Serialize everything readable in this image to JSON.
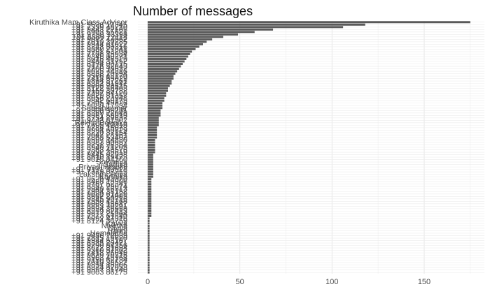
{
  "chart_data": {
    "type": "bar",
    "orientation": "horizontal",
    "title": "Number of messages",
    "xlabel": "",
    "ylabel": "",
    "xlim": [
      0,
      180
    ],
    "x_ticks": [
      0,
      50,
      100,
      150
    ],
    "grid": true,
    "legend": "none",
    "bar_color": "#595959",
    "categories": [
      "Kiruthika Mam Class Advisor",
      "+91 9626 12345",
      "+91 7339 48210",
      "+91 9443 27105",
      "+91 8903 55621",
      "+91 9750 13398",
      "+91 6380 72114",
      "+91 9087 44562",
      "+91 7010 39285",
      "+91 9944 61027",
      "+91 8248 50316",
      "+91 9360 27841",
      "+91 9791 63208",
      "+91 7708 15934",
      "+91 9345 80271",
      "+91 8015 46329",
      "+91 9488 31752",
      "+91 6374 90215",
      "+91 9176 52843",
      "+91 7200 18637",
      "+91 9025 74316",
      "+91 8838 20594",
      "+91 9566 43170",
      "+91 7418 65029",
      "+91 9894 37261",
      "+91 6382 51947",
      "+91 9003 28615",
      "+91 8122 76403",
      "+91 9159 30782",
      "+91 7397 54120",
      "+91 9629 81357",
      "+91 8056 23948",
      "+91 9842 60175",
      "+91 7305 49826",
      "+91 9080 17534",
      "Sureshkumar",
      "+91 9500 36281",
      "+91 6369 72048",
      "+91 9361 58013",
      "+91 8754 29637",
      "+91 9443 81502",
      "Rekha Deepika",
      "+91 7695 42318",
      "+91 9786 15073",
      "+91 9994 60829",
      "+91 8220 37154",
      "+91 9047 28961",
      "+91 7868 53402",
      "+91 9597 14830",
      "+91 6383 90657",
      "+91 9751 26384",
      "+91 8940 71205",
      "+91 9363 48576",
      "+91 7092 35619",
      "+91 9445 62038",
      "+91 8610 19473",
      "+91 9025 84160",
      "Sowmiya",
      "Sathya",
      "Priyadharshini",
      "+91 9171 30528",
      "+91 7339 67215",
      "Lakshmi Priya",
      "Karthika",
      "+91 9626 43870",
      "+91 8428 15906",
      "+91 9787 52341",
      "+91 6381 29074",
      "+91 9940 76513",
      "+91 7904 38152",
      "+91 9080 61429",
      "+91 8667 24085",
      "+91 9345 90716",
      "+91 7550 43268",
      "+91 9003 15847",
      "+91 8883 70291",
      "+91 9524 36058",
      "+91 6379 82413",
      "+91 9677 25904",
      "+91 7373 61840",
      "+91 9092 47316",
      "+91 8124 30759",
      "Kavya",
      "Nivetha",
      "Divya",
      "Harini",
      "Hemalatha",
      "+91 9486 72035",
      "+91 7845 19620",
      "+91 9944 53187",
      "+91 6385 20471",
      "+91 9790 84356",
      "+91 8072 31694",
      "+91 9360 57802",
      "+91 7418 26049",
      "+91 9629 70315",
      "+91 8903 45168",
      "+91 9150 62734",
      "+91 7010 38527",
      "+91 9894 15906",
      "+91 6374 82053",
      "+91 9597 31740",
      "+91 9003 86275"
    ],
    "values": [
      175,
      118,
      106,
      68,
      58,
      49,
      41,
      35,
      32,
      30,
      28,
      26,
      24,
      23,
      22,
      21,
      20,
      19,
      18,
      17,
      16,
      15,
      14,
      14,
      13,
      13,
      12,
      11,
      11,
      10,
      10,
      9,
      9,
      8,
      8,
      8,
      7,
      7,
      7,
      6,
      6,
      6,
      6,
      5,
      5,
      5,
      5,
      5,
      4,
      4,
      4,
      4,
      4,
      4,
      3,
      3,
      3,
      3,
      3,
      3,
      3,
      3,
      3,
      3,
      2,
      2,
      2,
      2,
      2,
      2,
      2,
      2,
      2,
      2,
      2,
      2,
      2,
      2,
      2,
      2,
      1,
      1,
      1,
      1,
      1,
      1,
      1,
      1,
      1,
      1,
      1,
      1,
      1,
      1,
      1,
      1,
      1,
      1,
      1,
      1,
      1,
      1,
      1
    ]
  }
}
